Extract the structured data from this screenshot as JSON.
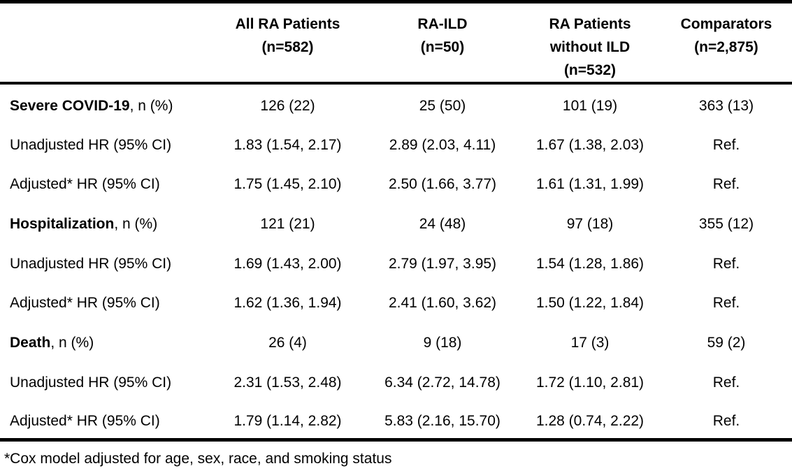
{
  "colors": {
    "text": "#000000",
    "background": "#ffffff",
    "rule": "#000000"
  },
  "table": {
    "header": {
      "col_label": "",
      "columns": [
        {
          "lines": [
            "All RA Patients",
            "(n=582)"
          ]
        },
        {
          "lines": [
            "RA-ILD",
            "(n=50)"
          ]
        },
        {
          "lines": [
            "RA Patients",
            "without ILD",
            "(n=532)"
          ]
        },
        {
          "lines": [
            "Comparators",
            "(n=2,875)"
          ]
        }
      ]
    },
    "rows": [
      {
        "label_strong": "Severe COVID-19",
        "label_plain": ", n (%)",
        "values": [
          "126 (22)",
          "25 (50)",
          "101 (19)",
          "363 (13)"
        ]
      },
      {
        "label_strong": "",
        "label_plain": "Unadjusted HR (95% CI)",
        "values": [
          "1.83 (1.54, 2.17)",
          "2.89 (2.03, 4.11)",
          "1.67 (1.38, 2.03)",
          "Ref."
        ]
      },
      {
        "label_strong": "",
        "label_plain": "Adjusted* HR (95% CI)",
        "values": [
          "1.75 (1.45, 2.10)",
          "2.50 (1.66, 3.77)",
          "1.61 (1.31, 1.99)",
          "Ref."
        ]
      },
      {
        "label_strong": "Hospitalization",
        "label_plain": ", n (%)",
        "values": [
          "121 (21)",
          "24 (48)",
          "97 (18)",
          "355 (12)"
        ]
      },
      {
        "label_strong": "",
        "label_plain": "Unadjusted HR (95% CI)",
        "values": [
          "1.69 (1.43, 2.00)",
          "2.79 (1.97, 3.95)",
          "1.54 (1.28, 1.86)",
          "Ref."
        ]
      },
      {
        "label_strong": "",
        "label_plain": "Adjusted* HR (95% CI)",
        "values": [
          "1.62 (1.36, 1.94)",
          "2.41 (1.60, 3.62)",
          "1.50 (1.22, 1.84)",
          "Ref."
        ]
      },
      {
        "label_strong": "Death",
        "label_plain": ", n (%)",
        "values": [
          "26 (4)",
          "9 (18)",
          "17 (3)",
          "59 (2)"
        ]
      },
      {
        "label_strong": "",
        "label_plain": "Unadjusted HR (95% CI)",
        "values": [
          "2.31 (1.53, 2.48)",
          "6.34 (2.72, 14.78)",
          "1.72 (1.10, 2.81)",
          "Ref."
        ]
      },
      {
        "label_strong": "",
        "label_plain": "Adjusted* HR (95% CI)",
        "values": [
          "1.79 (1.14, 2.82)",
          "5.83 (2.16, 15.70)",
          "1.28 (0.74, 2.22)",
          "Ref."
        ]
      }
    ],
    "footnote": "*Cox model adjusted for age, sex, race, and smoking status"
  }
}
